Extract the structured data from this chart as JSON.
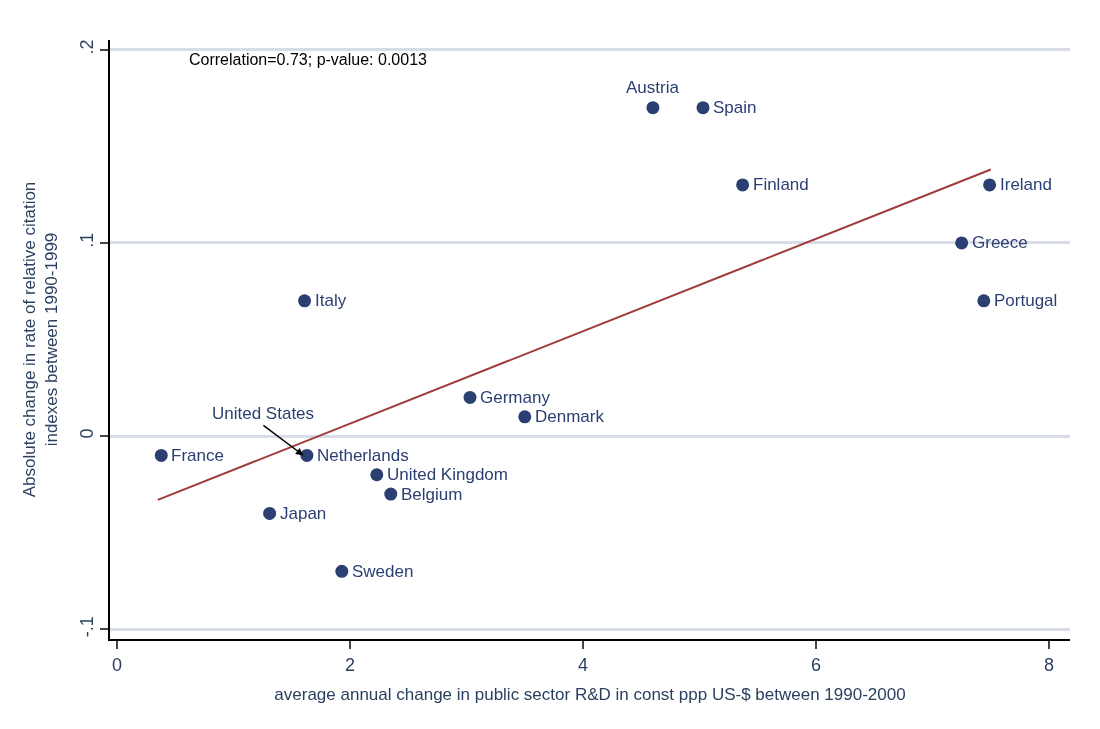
{
  "chart_data": {
    "type": "scatter",
    "xlabel": "average annual change in public sector R&D in const ppp US-$ between 1990-2000",
    "ylabel": "Absolute change in rate of relative citation\nindexes between 1990-1999",
    "xlim": [
      -0.06,
      8.18
    ],
    "ylim": [
      -0.105,
      0.205
    ],
    "xticks": [
      0,
      2,
      4,
      6,
      8
    ],
    "yticks": [
      {
        "value": -0.1,
        "label": "-.1"
      },
      0,
      {
        "value": 0.1,
        "label": ".1"
      },
      {
        "value": 0.2,
        "label": ".2"
      }
    ],
    "grid": "y",
    "series": [
      {
        "color": "#2b3f72",
        "marker": "circle",
        "x": [
          4.6,
          5.03,
          5.37,
          7.49,
          7.25,
          7.44,
          1.61,
          3.03,
          3.5,
          0.38,
          1.63,
          null,
          2.23,
          2.35,
          1.31,
          1.93
        ],
        "values": [
          0.17,
          0.17,
          0.13,
          0.13,
          0.1,
          0.07,
          0.07,
          0.02,
          0.01,
          -0.01,
          -0.01,
          null,
          -0.02,
          -0.03,
          -0.04,
          -0.07
        ]
      },
      {
        "type": "line",
        "color": "#a03c3c",
        "x": [
          0.35,
          7.5
        ],
        "values": [
          -0.033,
          0.138
        ]
      }
    ],
    "annotations": [
      "Correlation=0.73; p-value: 0.0013",
      {
        "text": "Austria",
        "x": 4.6,
        "y": 0.17
      },
      {
        "text": "Spain",
        "x": 5.03,
        "y": 0.17
      },
      {
        "text": "Finland",
        "x": 5.37,
        "y": 0.13
      },
      {
        "text": "Ireland",
        "x": 7.49,
        "y": 0.13
      },
      {
        "text": "Greece",
        "x": 7.25,
        "y": 0.1
      },
      {
        "text": "Portugal",
        "x": 7.44,
        "y": 0.07
      },
      {
        "text": "Italy",
        "x": 1.61,
        "y": 0.07
      },
      {
        "text": "Germany",
        "x": 3.03,
        "y": 0.02
      },
      {
        "text": "Denmark",
        "x": 3.5,
        "y": 0.01
      },
      {
        "text": "France",
        "x": 0.38,
        "y": -0.01
      },
      {
        "text": "Netherlands",
        "x": 1.63,
        "y": -0.01
      },
      {
        "text": "United States",
        "x": 1.6,
        "y": -0.01
      },
      {
        "text": "United Kingdom",
        "x": 2.23,
        "y": -0.02
      },
      {
        "text": "Belgium",
        "x": 2.35,
        "y": -0.03
      },
      {
        "text": "Japan",
        "x": 1.31,
        "y": -0.04
      },
      {
        "text": "Sweden",
        "x": 1.93,
        "y": -0.07
      }
    ]
  }
}
